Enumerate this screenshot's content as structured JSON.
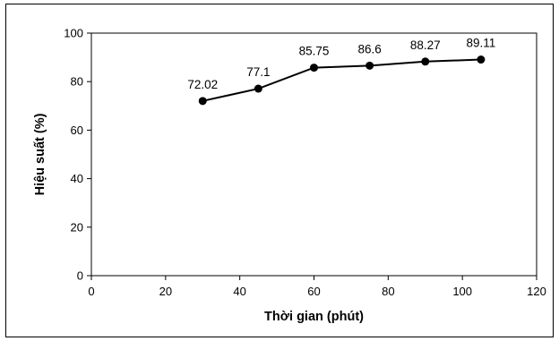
{
  "chart_data": {
    "type": "line",
    "title": "",
    "xlabel": "Thời gian (phút)",
    "ylabel": "Hiệu suất (%)",
    "xlim": [
      0,
      120
    ],
    "ylim": [
      0,
      100
    ],
    "x_ticks": [
      0,
      20,
      40,
      60,
      80,
      100,
      120
    ],
    "y_ticks": [
      0,
      20,
      40,
      60,
      80,
      100
    ],
    "grid": false,
    "legend": "none",
    "series": [
      {
        "x": [
          30,
          45,
          60,
          75,
          90,
          105
        ],
        "y": [
          72.02,
          77.1,
          85.75,
          86.6,
          88.27,
          89.11
        ],
        "labels": [
          "72.02",
          "77.1",
          "85.75",
          "86.6",
          "88.27",
          "89.11"
        ],
        "color": "#000000",
        "marker": "circle"
      }
    ]
  }
}
